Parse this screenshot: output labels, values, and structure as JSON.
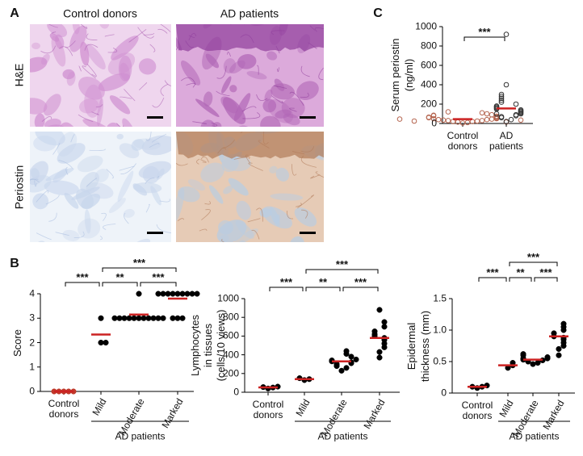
{
  "figure": {
    "panels": {
      "A": {
        "label": "A",
        "columns": [
          "Control donors",
          "AD patients"
        ],
        "rows": [
          "H&E",
          "Periostin"
        ]
      },
      "B": {
        "label": "B"
      },
      "C": {
        "label": "C"
      }
    }
  },
  "chart_data": [
    {
      "type": "dotplot",
      "ylabel": [
        "Serum periostin",
        "(ng/ml)"
      ],
      "categories": [
        "Control donors",
        "AD patients"
      ],
      "points": [
        [
          5,
          10,
          15,
          20,
          20,
          25,
          30,
          30,
          35,
          40,
          40,
          45,
          50,
          50,
          55,
          60,
          60,
          65,
          70,
          75,
          80,
          85,
          90,
          100,
          110,
          120,
          15,
          25,
          35,
          45
        ],
        [
          20,
          40,
          60,
          70,
          80,
          90,
          100,
          100,
          110,
          120,
          130,
          140,
          150,
          160,
          170,
          180,
          200,
          220,
          240,
          260,
          280,
          300,
          400,
          920
        ]
      ],
      "means": [
        45,
        155
      ],
      "point_colors": [
        "#b5654f",
        "#333333"
      ],
      "marker": "open",
      "mean_color": "#cc2222",
      "ylim": [
        0,
        1000
      ],
      "yticks": [
        0,
        200,
        400,
        600,
        800,
        1000
      ],
      "significance": [
        {
          "between": [
            0,
            1
          ],
          "label": "***"
        }
      ]
    },
    {
      "type": "dotplot",
      "ylabel": [
        "Score"
      ],
      "categories": [
        "Control donors",
        "Mild",
        "Moderate",
        "Marked"
      ],
      "group_label": "AD patients",
      "points": [
        [
          0,
          0,
          0,
          0,
          0
        ],
        [
          3,
          2,
          2
        ],
        [
          3,
          3,
          3,
          3,
          3,
          3,
          3,
          3,
          3,
          3,
          3,
          4
        ],
        [
          4,
          4,
          4,
          4,
          4,
          4,
          4,
          4,
          4,
          3,
          3,
          3
        ]
      ],
      "means": [
        0,
        2.33,
        3.15,
        3.8
      ],
      "point_colors": [
        "#c0392b",
        "#000000",
        "#000000",
        "#000000"
      ],
      "marker": "filled",
      "mean_color": "#cc2222",
      "ylim": [
        0,
        4
      ],
      "yticks": [
        0,
        1,
        2,
        3,
        4
      ],
      "significance": [
        {
          "between": [
            0,
            1
          ],
          "label": "***"
        },
        {
          "between": [
            1,
            2
          ],
          "label": "**"
        },
        {
          "between": [
            2,
            3
          ],
          "label": "***"
        },
        {
          "between": [
            1,
            3
          ],
          "label": "***"
        }
      ]
    },
    {
      "type": "dotplot",
      "ylabel": [
        "Lymphocytes",
        "in tissues",
        "(cells/10 views)"
      ],
      "categories": [
        "Control donors",
        "Mild",
        "Moderate",
        "Marked"
      ],
      "group_label": "AD patients",
      "points": [
        [
          40,
          50,
          55,
          60
        ],
        [
          130,
          140,
          150
        ],
        [
          230,
          260,
          280,
          300,
          310,
          320,
          330,
          340,
          350,
          380,
          410,
          440
        ],
        [
          370,
          430,
          480,
          520,
          560,
          580,
          600,
          620,
          650,
          700,
          750,
          880
        ]
      ],
      "means": [
        52,
        140,
        330,
        580
      ],
      "point_colors": [
        "#000000",
        "#000000",
        "#000000",
        "#000000"
      ],
      "marker": "filled",
      "mean_color": "#cc2222",
      "ylim": [
        0,
        1000
      ],
      "yticks": [
        0,
        200,
        400,
        600,
        800,
        1000
      ],
      "significance": [
        {
          "between": [
            0,
            1
          ],
          "label": "***"
        },
        {
          "between": [
            1,
            2
          ],
          "label": "**"
        },
        {
          "between": [
            2,
            3
          ],
          "label": "***"
        },
        {
          "between": [
            1,
            3
          ],
          "label": "***"
        }
      ]
    },
    {
      "type": "dotplot",
      "ylabel": [
        "Epidermal",
        "thickness (mm)"
      ],
      "categories": [
        "Control donors",
        "Mild",
        "Moderate",
        "Marked"
      ],
      "group_label": "AD patients",
      "points": [
        [
          0.08,
          0.1,
          0.1,
          0.12
        ],
        [
          0.4,
          0.44,
          0.48
        ],
        [
          0.46,
          0.48,
          0.5,
          0.52,
          0.53,
          0.55,
          0.55,
          0.57,
          0.6,
          0.62
        ],
        [
          0.6,
          0.7,
          0.75,
          0.8,
          0.85,
          0.88,
          0.9,
          0.95,
          1.0,
          1.05,
          1.1
        ]
      ],
      "means": [
        0.1,
        0.44,
        0.53,
        0.9
      ],
      "point_colors": [
        "#000000",
        "#000000",
        "#000000",
        "#000000"
      ],
      "marker": "filled",
      "mean_color": "#cc2222",
      "ylim": [
        0,
        1.5
      ],
      "yticks": [
        0,
        0.5,
        {
          "value": 1,
          "label": "1.0"
        },
        1.5
      ],
      "significance": [
        {
          "between": [
            0,
            1
          ],
          "label": "***"
        },
        {
          "between": [
            1,
            2
          ],
          "label": "**"
        },
        {
          "between": [
            2,
            3
          ],
          "label": "***"
        },
        {
          "between": [
            1,
            3
          ],
          "label": "***"
        }
      ]
    }
  ]
}
